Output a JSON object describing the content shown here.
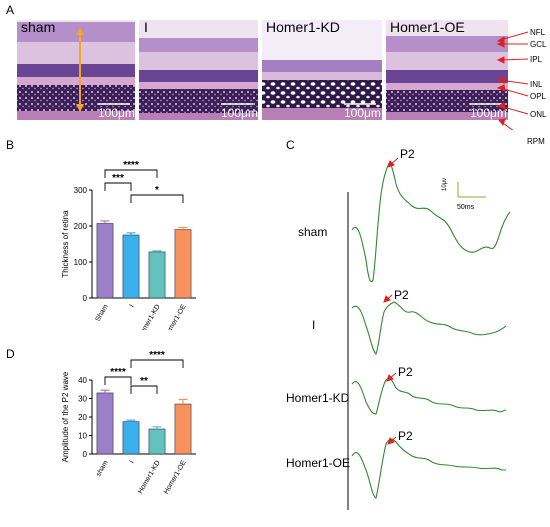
{
  "panel_letters": {
    "a": "A",
    "b": "B",
    "c": "C",
    "d": "D"
  },
  "panel_a": {
    "images": [
      {
        "label": "sham",
        "scale": "100μm"
      },
      {
        "label": "I",
        "scale": "100μm"
      },
      {
        "label": "Homer1-KD",
        "scale": "100μm"
      },
      {
        "label": "Homer1-OE",
        "scale": "100μm"
      }
    ],
    "layers": [
      "NFL",
      "GCL",
      "IPL",
      "INL",
      "OPL",
      "ONL",
      "RPM"
    ]
  },
  "panel_c": {
    "traces": [
      {
        "label": "sham",
        "peak": "P2"
      },
      {
        "label": "I",
        "peak": "P2"
      },
      {
        "label": "Homer1-KD",
        "peak": "P2"
      },
      {
        "label": "Homer1-OE",
        "peak": "P2"
      }
    ],
    "scale_v": "10μv",
    "scale_t": "50ms"
  },
  "chart_data": [
    {
      "type": "bar",
      "panel": "B",
      "categories": [
        "Sham",
        "I",
        "Homer1-KD",
        "Homer1-OE"
      ],
      "values": [
        207,
        175,
        128,
        190
      ],
      "errors": [
        7,
        6,
        3,
        6
      ],
      "colors": [
        "#9b7fc9",
        "#3ab0ec",
        "#62c2bf",
        "#f7925f"
      ],
      "ylabel": "Thickness of retina",
      "ylim": [
        0,
        300
      ],
      "yticks": [
        0,
        100,
        200,
        300
      ],
      "significance": [
        {
          "from": 0,
          "to": 1,
          "label": "***"
        },
        {
          "from": 0,
          "to": 2,
          "label": "****"
        },
        {
          "from": 1,
          "to": 3,
          "label": "*"
        }
      ]
    },
    {
      "type": "bar",
      "panel": "D",
      "categories": [
        "sham",
        "I",
        "Homer1-KD",
        "Homer1-OE"
      ],
      "values": [
        33,
        17.5,
        13.5,
        27
      ],
      "errors": [
        1.5,
        0.8,
        1.2,
        2.5
      ],
      "colors": [
        "#9b7fc9",
        "#3ab0ec",
        "#62c2bf",
        "#f7925f"
      ],
      "ylabel": "Amplitude of the P2 wave",
      "ylim": [
        0,
        40
      ],
      "yticks": [
        0,
        10,
        20,
        30,
        40
      ],
      "significance": [
        {
          "from": 0,
          "to": 1,
          "label": "****"
        },
        {
          "from": 1,
          "to": 2,
          "label": "**"
        },
        {
          "from": 1,
          "to": 3,
          "label": "****"
        }
      ]
    }
  ]
}
